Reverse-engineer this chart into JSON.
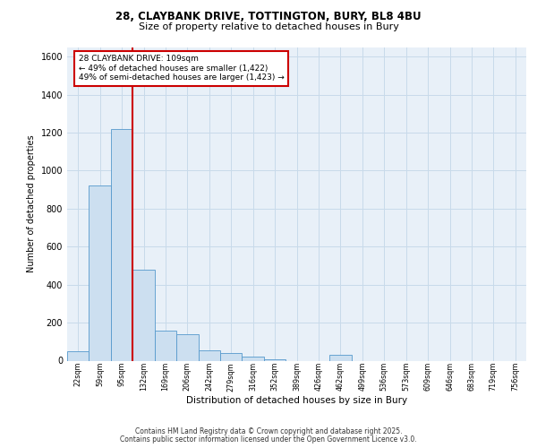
{
  "title_line1": "28, CLAYBANK DRIVE, TOTTINGTON, BURY, BL8 4BU",
  "title_line2": "Size of property relative to detached houses in Bury",
  "xlabel": "Distribution of detached houses by size in Bury",
  "ylabel": "Number of detached properties",
  "bin_labels": [
    "22sqm",
    "59sqm",
    "95sqm",
    "132sqm",
    "169sqm",
    "206sqm",
    "242sqm",
    "279sqm",
    "316sqm",
    "352sqm",
    "389sqm",
    "426sqm",
    "462sqm",
    "499sqm",
    "536sqm",
    "573sqm",
    "609sqm",
    "646sqm",
    "683sqm",
    "719sqm",
    "756sqm"
  ],
  "bar_values": [
    50,
    920,
    1220,
    480,
    160,
    140,
    55,
    40,
    20,
    5,
    0,
    0,
    30,
    0,
    0,
    0,
    0,
    0,
    0,
    0,
    0
  ],
  "bar_color": "#ccdff0",
  "bar_edge_color": "#5599cc",
  "grid_color": "#c8daea",
  "background_color": "#e8f0f8",
  "red_line_x": 2.5,
  "annotation_text": "28 CLAYBANK DRIVE: 109sqm\n← 49% of detached houses are smaller (1,422)\n49% of semi-detached houses are larger (1,423) →",
  "annotation_box_color": "#ffffff",
  "annotation_box_edge": "#cc0000",
  "annotation_text_color": "#000000",
  "red_line_color": "#cc0000",
  "ylim": [
    0,
    1650
  ],
  "yticks": [
    0,
    200,
    400,
    600,
    800,
    1000,
    1200,
    1400,
    1600
  ],
  "footer_line1": "Contains HM Land Registry data © Crown copyright and database right 2025.",
  "footer_line2": "Contains public sector information licensed under the Open Government Licence v3.0."
}
